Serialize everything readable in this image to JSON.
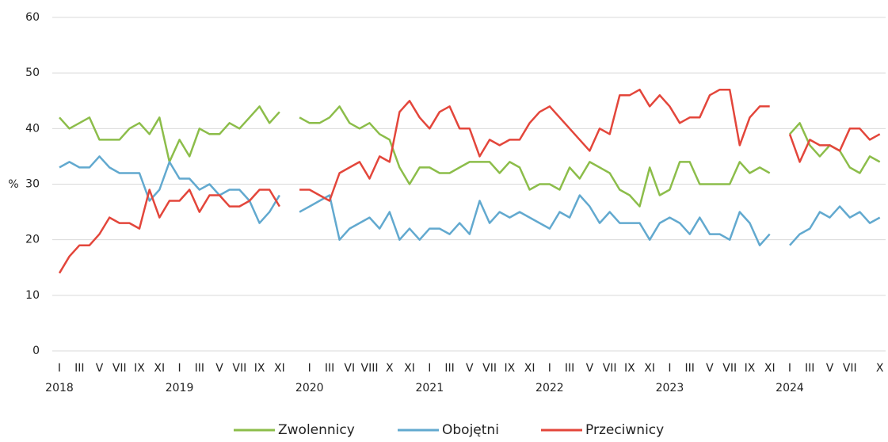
{
  "chart_data": {
    "type": "line",
    "y_label": "%",
    "categories": [
      "I",
      null,
      "III",
      null,
      "V",
      null,
      "VII",
      null,
      "IX",
      null,
      "XI",
      null,
      "I",
      null,
      "III",
      null,
      "V",
      null,
      "VII",
      null,
      "IX",
      null,
      "XI",
      null,
      null,
      "I",
      null,
      "III",
      null,
      "VI",
      null,
      "VIII",
      null,
      "X",
      null,
      "XI",
      null,
      "I",
      null,
      "III",
      null,
      "V",
      null,
      "VII",
      null,
      "IX",
      null,
      "XI",
      null,
      "I",
      null,
      "III",
      null,
      "V",
      null,
      "VII",
      null,
      "IX",
      null,
      "XI",
      null,
      "I",
      null,
      "III",
      null,
      "V",
      null,
      "VII",
      null,
      "IX",
      null,
      "XI",
      null,
      "I",
      null,
      "III",
      null,
      "V",
      null,
      "VII",
      null,
      null,
      "X"
    ],
    "category_years": [
      "2018",
      null,
      null,
      null,
      null,
      null,
      null,
      null,
      null,
      null,
      null,
      null,
      "2019",
      null,
      null,
      null,
      null,
      null,
      null,
      null,
      null,
      null,
      null,
      null,
      null,
      "2020",
      null,
      null,
      null,
      null,
      null,
      null,
      null,
      null,
      null,
      null,
      null,
      "2021",
      null,
      null,
      null,
      null,
      null,
      null,
      null,
      null,
      null,
      null,
      null,
      "2022",
      null,
      null,
      null,
      null,
      null,
      null,
      null,
      null,
      null,
      null,
      null,
      "2023",
      null,
      null,
      null,
      null,
      null,
      null,
      null,
      null,
      null,
      null,
      null,
      "2024",
      null,
      null,
      null,
      null,
      null,
      null,
      null,
      null,
      null
    ],
    "series": [
      {
        "name": "Zwolennicy",
        "color": "#8cbd4a",
        "values": [
          42,
          40,
          41,
          42,
          38,
          38,
          38,
          40,
          41,
          39,
          42,
          34,
          38,
          35,
          40,
          39,
          39,
          41,
          40,
          42,
          44,
          41,
          43,
          null,
          42,
          41,
          41,
          42,
          44,
          41,
          40,
          41,
          39,
          38,
          33,
          30,
          33,
          33,
          32,
          32,
          33,
          34,
          34,
          34,
          32,
          34,
          33,
          29,
          30,
          30,
          29,
          33,
          31,
          34,
          33,
          32,
          29,
          28,
          26,
          33,
          28,
          29,
          34,
          34,
          30,
          30,
          30,
          30,
          34,
          32,
          33,
          32,
          null,
          39,
          41,
          37,
          35,
          37,
          36,
          33,
          32,
          35,
          34
        ]
      },
      {
        "name": "Obojętni",
        "color": "#62a9cf",
        "values": [
          33,
          34,
          33,
          33,
          35,
          33,
          32,
          32,
          32,
          27,
          29,
          34,
          31,
          31,
          29,
          30,
          28,
          29,
          29,
          27,
          23,
          25,
          28,
          null,
          25,
          26,
          27,
          28,
          20,
          22,
          23,
          24,
          22,
          25,
          20,
          22,
          20,
          22,
          22,
          21,
          23,
          21,
          27,
          23,
          25,
          24,
          25,
          24,
          23,
          22,
          25,
          24,
          28,
          26,
          23,
          25,
          23,
          23,
          23,
          20,
          23,
          24,
          23,
          21,
          24,
          21,
          21,
          20,
          25,
          23,
          19,
          21,
          null,
          19,
          21,
          22,
          25,
          24,
          26,
          24,
          25,
          23,
          24
        ]
      },
      {
        "name": "Przeciwnicy",
        "color": "#e3463b",
        "values": [
          14,
          17,
          19,
          19,
          21,
          24,
          23,
          23,
          22,
          29,
          24,
          27,
          27,
          29,
          25,
          28,
          28,
          26,
          26,
          27,
          29,
          29,
          26,
          null,
          29,
          29,
          28,
          27,
          32,
          33,
          34,
          31,
          35,
          34,
          43,
          45,
          42,
          40,
          43,
          44,
          40,
          40,
          35,
          38,
          37,
          38,
          38,
          41,
          43,
          44,
          42,
          40,
          38,
          36,
          40,
          39,
          46,
          46,
          47,
          44,
          46,
          44,
          41,
          42,
          42,
          46,
          47,
          47,
          37,
          42,
          44,
          44,
          null,
          39,
          34,
          38,
          37,
          37,
          36,
          40,
          40,
          38,
          39
        ]
      }
    ],
    "ylim": [
      0,
      60
    ],
    "yticks": [
      0,
      10,
      20,
      30,
      40,
      50,
      60
    ],
    "grid": true
  }
}
